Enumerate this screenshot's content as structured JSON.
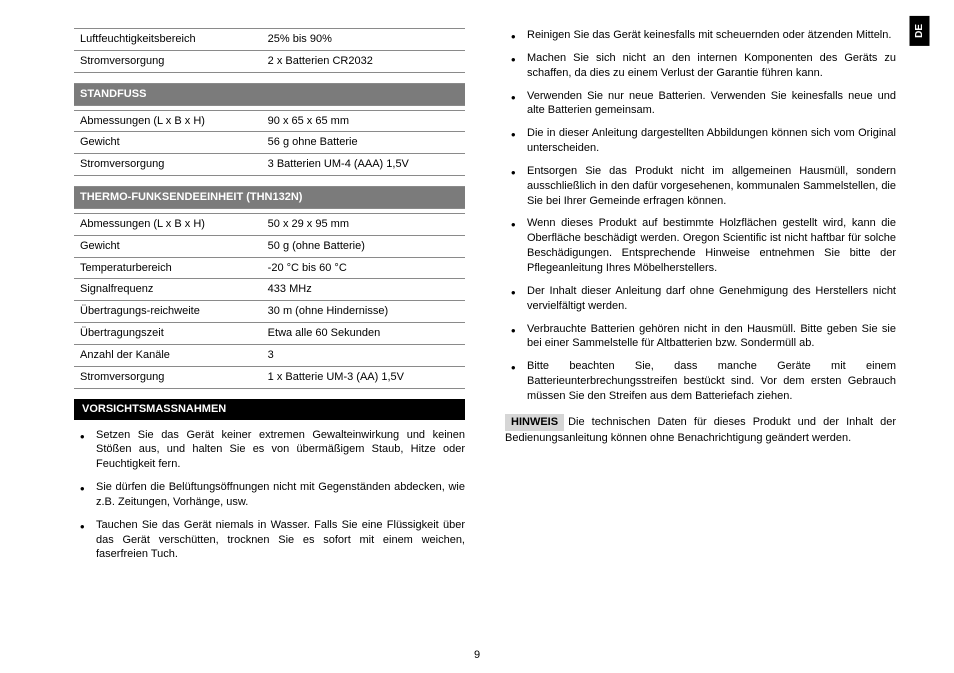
{
  "langTab": "DE",
  "pageNumber": "9",
  "tables": {
    "top": {
      "rows": [
        [
          "Luftfeuchtigkeitsbereich",
          "25% bis 90%"
        ],
        [
          "Stromversorgung",
          "2 x Batterien CR2032"
        ]
      ]
    },
    "standfuss": {
      "title": "STANDFUSS",
      "rows": [
        [
          "Abmessungen (L x B x H)",
          "90 x 65 x 65 mm"
        ],
        [
          "Gewicht",
          "56 g ohne Batterie"
        ],
        [
          "Stromversorgung",
          "3 Batterien UM-4 (AAA) 1,5V"
        ]
      ]
    },
    "thermo": {
      "title": "THERMO-FUNKSENDEEINHEIT (THN132N)",
      "rows": [
        [
          "Abmessungen (L x B x H)",
          "50 x 29 x 95 mm"
        ],
        [
          "Gewicht",
          "50 g (ohne Batterie)"
        ],
        [
          "Temperaturbereich",
          "-20 °C bis 60 °C"
        ],
        [
          "Signalfrequenz",
          "433 MHz"
        ],
        [
          "Übertragungs-reichweite",
          "30 m (ohne Hindernisse)"
        ],
        [
          "Übertragungszeit",
          "Etwa alle 60 Sekunden"
        ],
        [
          "Anzahl der Kanäle",
          "3"
        ],
        [
          "Stromversorgung",
          "1 x Batterie UM-3 (AA) 1,5V"
        ]
      ]
    }
  },
  "precautions": {
    "title": "VORSICHTSMASSNAHMEN",
    "itemsLeft": [
      "Setzen Sie das Gerät keiner extremen Gewalteinwirkung und keinen Stößen aus, und halten Sie es von übermäßigem Staub, Hitze oder Feuchtigkeit fern.",
      "Sie dürfen die Belüftungsöffnungen nicht mit Gegenständen abdecken, wie z.B. Zeitungen, Vorhänge, usw.",
      "Tauchen Sie das Gerät niemals in Wasser. Falls Sie eine Flüssigkeit über das Gerät verschütten, trocknen Sie es sofort mit einem weichen, faserfreien Tuch."
    ],
    "itemsRight": [
      "Reinigen Sie das Gerät keinesfalls mit scheuernden oder ätzenden Mitteln.",
      "Machen Sie sich nicht an den internen Komponenten des Geräts zu schaffen, da dies zu einem Verlust der Garantie führen kann.",
      "Verwenden Sie nur neue Batterien. Verwenden Sie keinesfalls neue und alte Batterien gemeinsam.",
      "Die in dieser Anleitung dargestellten Abbildungen können sich vom Original unterscheiden.",
      "Entsorgen Sie das Produkt nicht im allgemeinen Hausmüll, sondern ausschließlich in den dafür vorgesehenen, kommunalen Sammelstellen, die Sie bei Ihrer Gemeinde erfragen können.",
      "Wenn dieses Produkt auf bestimmte Holzflächen gestellt wird, kann die Oberfläche beschädigt werden. Oregon Scientific ist nicht haftbar für solche Beschädigungen. Entsprechende Hinweise entnehmen Sie bitte der Pflegeanleitung Ihres Möbelherstellers.",
      "Der Inhalt dieser Anleitung darf ohne Genehmigung des Herstellers nicht vervielfältigt werden.",
      "Verbrauchte Batterien gehören nicht in den Hausmüll. Bitte geben Sie sie bei einer Sammelstelle für Altbatterien bzw. Sondermüll ab.",
      "Bitte beachten Sie, dass manche Geräte mit einem Batterieunterbrechungsstreifen bestückt sind. Vor dem ersten Gebrauch müssen Sie den Streifen aus dem Batteriefach ziehen."
    ]
  },
  "hinweis": {
    "label": "HINWEIS",
    "text": "Die technischen Daten für dieses Produkt und der Inhalt der Bedienungsanleitung können ohne Benachrichtigung geändert werden."
  }
}
